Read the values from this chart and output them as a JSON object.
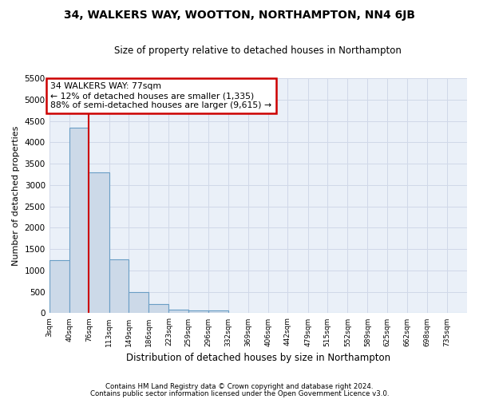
{
  "title": "34, WALKERS WAY, WOOTTON, NORTHAMPTON, NN4 6JB",
  "subtitle": "Size of property relative to detached houses in Northampton",
  "xlabel": "Distribution of detached houses by size in Northampton",
  "ylabel": "Number of detached properties",
  "footnote1": "Contains HM Land Registry data © Crown copyright and database right 2024.",
  "footnote2": "Contains public sector information licensed under the Open Government Licence v3.0.",
  "annotation_title": "34 WALKERS WAY: 77sqm",
  "annotation_line1": "← 12% of detached houses are smaller (1,335)",
  "annotation_line2": "88% of semi-detached houses are larger (9,615) →",
  "property_size_bin": 1,
  "bar_color": "#ccd9e8",
  "bar_edge_color": "#6a9ec5",
  "vline_color": "#cc0000",
  "annotation_box_color": "#cc0000",
  "grid_color": "#d0d8e8",
  "bg_color": "#eaf0f8",
  "categories": [
    "3sqm",
    "40sqm",
    "76sqm",
    "113sqm",
    "149sqm",
    "186sqm",
    "223sqm",
    "259sqm",
    "296sqm",
    "332sqm",
    "369sqm",
    "406sqm",
    "442sqm",
    "479sqm",
    "515sqm",
    "552sqm",
    "589sqm",
    "625sqm",
    "662sqm",
    "698sqm",
    "735sqm"
  ],
  "bin_edges": [
    3,
    40,
    76,
    113,
    149,
    186,
    223,
    259,
    296,
    332,
    369,
    406,
    442,
    479,
    515,
    552,
    589,
    625,
    662,
    698,
    735,
    772
  ],
  "bar_heights": [
    1250,
    4350,
    3300,
    1260,
    490,
    220,
    85,
    70,
    55,
    0,
    0,
    0,
    0,
    0,
    0,
    0,
    0,
    0,
    0,
    0,
    0
  ],
  "ylim": [
    0,
    5500
  ],
  "yticks": [
    0,
    500,
    1000,
    1500,
    2000,
    2500,
    3000,
    3500,
    4000,
    4500,
    5000,
    5500
  ]
}
